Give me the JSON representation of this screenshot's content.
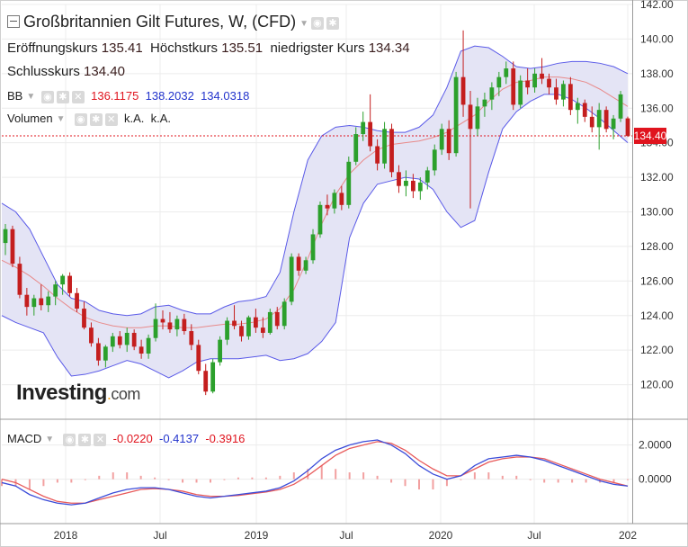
{
  "header": {
    "title": "Großbritannien Gilt Futures, W, (CFD)",
    "open_label": "Eröffnungskurs",
    "open_value": "135.41",
    "high_label": "Höchstkurs",
    "high_value": "135.51",
    "low_label": "niedrigster Kurs",
    "low_value": "134.34",
    "close_label": "Schlusskurs",
    "close_value": "134.40"
  },
  "indicators": {
    "bb_label": "BB",
    "bb_v1": "136.1175",
    "bb_v2": "138.2032",
    "bb_v3": "134.0318",
    "vol_label": "Volumen",
    "vol_v1": "k.A.",
    "vol_v2": "k.A.",
    "macd_label": "MACD",
    "macd_v1": "-0.0220",
    "macd_v2": "-0.4137",
    "macd_v3": "-0.3916"
  },
  "price_tag": "134.40",
  "watermark": {
    "main": "Investing",
    "suffix": "com"
  },
  "colors": {
    "bull": "#2ca02c",
    "bear": "#c41e1e",
    "band": "#5a5ae8",
    "band_fill": "#e4e4f5",
    "mid": "#e88a8a",
    "macd": "#3b4cd9",
    "signal": "#e85a5a",
    "accent_red": "#e0141e"
  },
  "chart_data": {
    "type": "candlestick",
    "price_axis": {
      "min": 118.0,
      "max": 142.0,
      "ticks": [
        "142.00",
        "140.00",
        "138.00",
        "136.00",
        "134.00",
        "132.00",
        "130.00",
        "128.00",
        "126.00",
        "124.00",
        "122.00",
        "120.00"
      ]
    },
    "macd_axis": {
      "ticks": [
        "2.0000",
        "0.0000"
      ]
    },
    "x_ticks": [
      "2018",
      "Jul",
      "2019",
      "Jul",
      "2020",
      "Jul",
      "202"
    ],
    "last_close": 134.4,
    "bb_mid": [
      127.2,
      126.8,
      126.3,
      125.7,
      125.0,
      124.4,
      123.9,
      123.6,
      123.4,
      123.3,
      123.3,
      123.4,
      123.4,
      123.3,
      123.3,
      123.4,
      123.5,
      123.5,
      123.6,
      123.8,
      124.4,
      125.5,
      127.3,
      129.3,
      131.0,
      132.2,
      133.0,
      133.6,
      133.9,
      134.0,
      134.1,
      134.3,
      134.6,
      135.1,
      135.6,
      136.4,
      137.1,
      137.5,
      137.6,
      137.8,
      137.8,
      137.7,
      137.5,
      137.1,
      136.6,
      136.1
    ],
    "bb_up": [
      130.5,
      130.0,
      129.0,
      127.4,
      125.8,
      125.0,
      124.8,
      124.3,
      124.1,
      124.0,
      124.1,
      124.5,
      124.6,
      124.3,
      124.1,
      124.1,
      124.5,
      124.8,
      124.9,
      125.1,
      126.5,
      130.0,
      133.0,
      134.4,
      134.9,
      135.0,
      134.9,
      134.7,
      134.6,
      134.6,
      134.9,
      135.6,
      137.2,
      139.3,
      139.6,
      139.5,
      139.0,
      138.4,
      138.3,
      138.4,
      138.6,
      138.7,
      138.7,
      138.6,
      138.4,
      138.0
    ],
    "bb_low": [
      124.0,
      123.6,
      123.3,
      123.0,
      121.6,
      120.5,
      120.6,
      120.8,
      121.1,
      121.4,
      121.2,
      120.8,
      120.4,
      120.8,
      121.3,
      121.5,
      121.5,
      121.5,
      121.6,
      121.7,
      121.4,
      121.5,
      121.8,
      122.5,
      123.6,
      128.5,
      130.5,
      131.6,
      131.8,
      132.0,
      131.9,
      131.3,
      130.0,
      129.1,
      129.5,
      132.3,
      134.8,
      135.8,
      136.4,
      136.8,
      136.8,
      136.5,
      136.0,
      135.4,
      134.7,
      134.0
    ],
    "candles": [
      {
        "o": 128.2,
        "h": 129.3,
        "l": 127.5,
        "c": 129.0
      },
      {
        "o": 129.0,
        "h": 129.2,
        "l": 126.8,
        "c": 127.0
      },
      {
        "o": 127.0,
        "h": 127.4,
        "l": 125.0,
        "c": 125.2
      },
      {
        "o": 125.2,
        "h": 125.6,
        "l": 124.0,
        "c": 124.5
      },
      {
        "o": 124.5,
        "h": 125.2,
        "l": 124.0,
        "c": 125.0
      },
      {
        "o": 125.0,
        "h": 125.8,
        "l": 124.3,
        "c": 124.6
      },
      {
        "o": 124.6,
        "h": 125.4,
        "l": 124.2,
        "c": 125.1
      },
      {
        "o": 125.1,
        "h": 126.0,
        "l": 124.6,
        "c": 125.8
      },
      {
        "o": 125.8,
        "h": 126.4,
        "l": 125.2,
        "c": 126.3
      },
      {
        "o": 126.3,
        "h": 126.5,
        "l": 125.1,
        "c": 125.3
      },
      {
        "o": 125.3,
        "h": 125.6,
        "l": 124.2,
        "c": 124.4
      },
      {
        "o": 124.4,
        "h": 124.8,
        "l": 123.2,
        "c": 123.3
      },
      {
        "o": 123.3,
        "h": 123.6,
        "l": 122.2,
        "c": 122.4
      },
      {
        "o": 122.4,
        "h": 122.7,
        "l": 121.1,
        "c": 121.4
      },
      {
        "o": 121.4,
        "h": 122.3,
        "l": 121.0,
        "c": 122.2
      },
      {
        "o": 122.2,
        "h": 123.0,
        "l": 121.9,
        "c": 122.8
      },
      {
        "o": 122.8,
        "h": 123.1,
        "l": 122.1,
        "c": 122.3
      },
      {
        "o": 122.3,
        "h": 123.3,
        "l": 121.9,
        "c": 123.0
      },
      {
        "o": 123.0,
        "h": 123.2,
        "l": 122.0,
        "c": 122.2
      },
      {
        "o": 122.2,
        "h": 122.6,
        "l": 121.5,
        "c": 121.8
      },
      {
        "o": 121.8,
        "h": 122.9,
        "l": 121.5,
        "c": 122.7
      },
      {
        "o": 122.7,
        "h": 124.7,
        "l": 122.5,
        "c": 123.8
      },
      {
        "o": 123.8,
        "h": 124.3,
        "l": 123.2,
        "c": 123.6
      },
      {
        "o": 123.6,
        "h": 124.2,
        "l": 123.0,
        "c": 123.2
      },
      {
        "o": 123.2,
        "h": 124.0,
        "l": 122.8,
        "c": 123.8
      },
      {
        "o": 123.8,
        "h": 124.1,
        "l": 122.9,
        "c": 123.1
      },
      {
        "o": 123.1,
        "h": 123.5,
        "l": 122.0,
        "c": 122.3
      },
      {
        "o": 122.3,
        "h": 122.6,
        "l": 120.6,
        "c": 120.8
      },
      {
        "o": 120.8,
        "h": 121.2,
        "l": 119.4,
        "c": 119.6
      },
      {
        "o": 119.6,
        "h": 121.5,
        "l": 119.5,
        "c": 121.3
      },
      {
        "o": 121.3,
        "h": 122.8,
        "l": 121.1,
        "c": 122.6
      },
      {
        "o": 122.6,
        "h": 123.9,
        "l": 122.3,
        "c": 123.7
      },
      {
        "o": 123.7,
        "h": 124.6,
        "l": 123.2,
        "c": 123.4
      },
      {
        "o": 123.4,
        "h": 123.7,
        "l": 122.5,
        "c": 122.8
      },
      {
        "o": 122.8,
        "h": 124.0,
        "l": 122.6,
        "c": 123.9
      },
      {
        "o": 123.9,
        "h": 124.4,
        "l": 123.0,
        "c": 123.3
      },
      {
        "o": 123.3,
        "h": 123.9,
        "l": 122.7,
        "c": 123.0
      },
      {
        "o": 123.0,
        "h": 124.4,
        "l": 122.9,
        "c": 124.2
      },
      {
        "o": 124.2,
        "h": 124.5,
        "l": 123.2,
        "c": 123.4
      },
      {
        "o": 123.4,
        "h": 125.0,
        "l": 123.2,
        "c": 124.8
      },
      {
        "o": 124.8,
        "h": 127.6,
        "l": 124.6,
        "c": 127.4
      },
      {
        "o": 127.4,
        "h": 127.6,
        "l": 126.3,
        "c": 126.6
      },
      {
        "o": 126.6,
        "h": 127.4,
        "l": 126.4,
        "c": 127.2
      },
      {
        "o": 127.2,
        "h": 129.0,
        "l": 127.0,
        "c": 128.7
      },
      {
        "o": 128.7,
        "h": 130.6,
        "l": 128.5,
        "c": 130.4
      },
      {
        "o": 130.4,
        "h": 131.0,
        "l": 129.8,
        "c": 130.2
      },
      {
        "o": 130.2,
        "h": 131.3,
        "l": 129.9,
        "c": 131.1
      },
      {
        "o": 131.1,
        "h": 131.5,
        "l": 130.1,
        "c": 130.4
      },
      {
        "o": 130.4,
        "h": 133.2,
        "l": 130.2,
        "c": 132.9
      },
      {
        "o": 132.9,
        "h": 134.9,
        "l": 132.7,
        "c": 134.5
      },
      {
        "o": 134.5,
        "h": 135.8,
        "l": 134.1,
        "c": 135.2
      },
      {
        "o": 135.2,
        "h": 136.8,
        "l": 133.5,
        "c": 133.8
      },
      {
        "o": 133.8,
        "h": 134.2,
        "l": 132.4,
        "c": 132.8
      },
      {
        "o": 132.8,
        "h": 135.2,
        "l": 132.5,
        "c": 134.8
      },
      {
        "o": 134.8,
        "h": 135.1,
        "l": 132.0,
        "c": 132.3
      },
      {
        "o": 132.3,
        "h": 132.7,
        "l": 131.1,
        "c": 131.5
      },
      {
        "o": 131.5,
        "h": 132.4,
        "l": 130.9,
        "c": 131.8
      },
      {
        "o": 131.8,
        "h": 132.2,
        "l": 130.8,
        "c": 131.2
      },
      {
        "o": 131.2,
        "h": 132.0,
        "l": 130.7,
        "c": 131.7
      },
      {
        "o": 131.7,
        "h": 132.6,
        "l": 131.3,
        "c": 132.4
      },
      {
        "o": 132.4,
        "h": 133.9,
        "l": 132.1,
        "c": 133.6
      },
      {
        "o": 133.6,
        "h": 135.1,
        "l": 133.3,
        "c": 134.8
      },
      {
        "o": 134.8,
        "h": 135.3,
        "l": 133.0,
        "c": 133.4
      },
      {
        "o": 133.4,
        "h": 138.1,
        "l": 133.2,
        "c": 137.8
      },
      {
        "o": 137.8,
        "h": 140.5,
        "l": 135.5,
        "c": 136.2
      },
      {
        "o": 136.2,
        "h": 137.0,
        "l": 130.2,
        "c": 134.8
      },
      {
        "o": 134.8,
        "h": 136.6,
        "l": 134.4,
        "c": 136.1
      },
      {
        "o": 136.1,
        "h": 136.9,
        "l": 135.5,
        "c": 136.5
      },
      {
        "o": 136.5,
        "h": 137.5,
        "l": 135.9,
        "c": 137.2
      },
      {
        "o": 137.2,
        "h": 138.1,
        "l": 136.7,
        "c": 137.8
      },
      {
        "o": 137.8,
        "h": 138.7,
        "l": 137.4,
        "c": 138.3
      },
      {
        "o": 138.3,
        "h": 138.7,
        "l": 135.9,
        "c": 136.2
      },
      {
        "o": 136.2,
        "h": 137.9,
        "l": 136.0,
        "c": 137.6
      },
      {
        "o": 137.6,
        "h": 138.3,
        "l": 136.8,
        "c": 137.2
      },
      {
        "o": 137.2,
        "h": 138.3,
        "l": 136.9,
        "c": 138.0
      },
      {
        "o": 138.0,
        "h": 138.9,
        "l": 137.4,
        "c": 137.7
      },
      {
        "o": 137.7,
        "h": 138.0,
        "l": 136.8,
        "c": 137.2
      },
      {
        "o": 137.2,
        "h": 137.7,
        "l": 136.2,
        "c": 136.5
      },
      {
        "o": 136.5,
        "h": 137.6,
        "l": 136.1,
        "c": 137.4
      },
      {
        "o": 137.4,
        "h": 137.8,
        "l": 135.6,
        "c": 135.9
      },
      {
        "o": 135.9,
        "h": 136.6,
        "l": 135.1,
        "c": 136.3
      },
      {
        "o": 136.3,
        "h": 136.5,
        "l": 135.2,
        "c": 135.5
      },
      {
        "o": 135.5,
        "h": 136.1,
        "l": 134.6,
        "c": 134.9
      },
      {
        "o": 134.9,
        "h": 136.3,
        "l": 133.6,
        "c": 135.9
      },
      {
        "o": 135.9,
        "h": 136.1,
        "l": 134.6,
        "c": 134.8
      },
      {
        "o": 134.8,
        "h": 135.6,
        "l": 134.2,
        "c": 135.4
      },
      {
        "o": 135.4,
        "h": 137.0,
        "l": 135.2,
        "c": 136.8
      },
      {
        "o": 135.41,
        "h": 135.51,
        "l": 134.34,
        "c": 134.4
      }
    ],
    "macd_line": [
      -0.2,
      -0.4,
      -0.9,
      -1.2,
      -1.4,
      -1.5,
      -1.4,
      -1.1,
      -0.8,
      -0.6,
      -0.5,
      -0.5,
      -0.6,
      -0.8,
      -1.0,
      -1.1,
      -1.0,
      -0.9,
      -0.8,
      -0.7,
      -0.5,
      -0.1,
      0.5,
      1.2,
      1.7,
      2.0,
      2.2,
      2.3,
      2.0,
      1.5,
      0.8,
      0.3,
      0.0,
      0.2,
      0.8,
      1.2,
      1.3,
      1.4,
      1.3,
      1.1,
      0.8,
      0.5,
      0.2,
      -0.1,
      -0.3,
      -0.4
    ],
    "macd_signal": [
      0.0,
      -0.2,
      -0.6,
      -1.0,
      -1.3,
      -1.4,
      -1.4,
      -1.2,
      -1.0,
      -0.8,
      -0.6,
      -0.55,
      -0.6,
      -0.7,
      -0.9,
      -1.0,
      -1.0,
      -0.95,
      -0.85,
      -0.75,
      -0.6,
      -0.3,
      0.2,
      0.8,
      1.4,
      1.8,
      2.0,
      2.2,
      2.1,
      1.7,
      1.1,
      0.6,
      0.2,
      0.2,
      0.6,
      1.0,
      1.2,
      1.3,
      1.3,
      1.2,
      0.9,
      0.6,
      0.3,
      0.0,
      -0.2,
      -0.4
    ]
  }
}
